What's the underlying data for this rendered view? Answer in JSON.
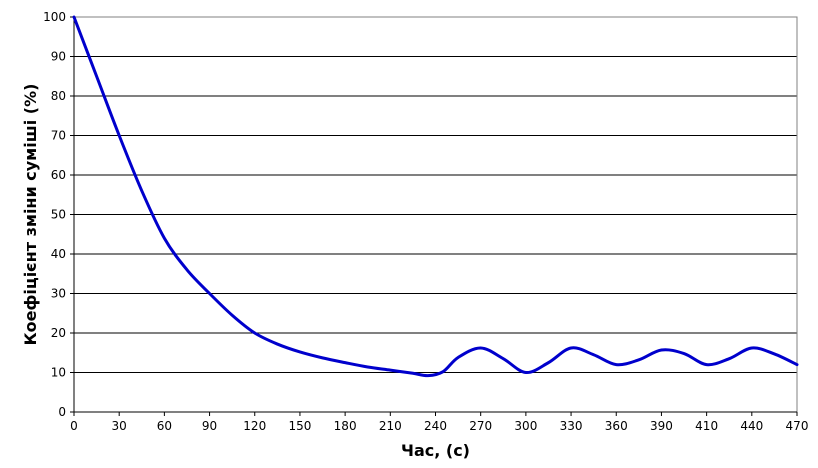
{
  "chart_data": {
    "type": "line",
    "title": "",
    "xlabel": "Час, (с)",
    "ylabel": "Коефіцієнт зміни суміші (%)",
    "ylim": [
      0,
      100
    ],
    "x_ticks": [
      "0",
      "30",
      "60",
      "90",
      "120",
      "150",
      "180",
      "210",
      "240",
      "270",
      "300",
      "330",
      "360",
      "390",
      "410",
      "440",
      "470"
    ],
    "y_ticks": [
      "0",
      "10",
      "20",
      "30",
      "40",
      "50",
      "60",
      "70",
      "80",
      "90",
      "100"
    ],
    "grid": true,
    "legend": "none",
    "series": [
      {
        "color": "#0000cc",
        "points": [
          [
            0,
            100
          ],
          [
            15,
            85
          ],
          [
            30,
            70
          ],
          [
            45,
            56
          ],
          [
            60,
            44
          ],
          [
            75,
            36
          ],
          [
            90,
            30
          ],
          [
            105,
            24.5
          ],
          [
            120,
            20
          ],
          [
            135,
            17.2
          ],
          [
            150,
            15.2
          ],
          [
            165,
            13.7
          ],
          [
            180,
            12.5
          ],
          [
            195,
            11.4
          ],
          [
            210,
            10.6
          ],
          [
            225,
            9.8
          ],
          [
            235,
            9.2
          ],
          [
            245,
            10.2
          ],
          [
            255,
            13.8
          ],
          [
            270,
            16.2
          ],
          [
            285,
            13.5
          ],
          [
            300,
            10.0
          ],
          [
            315,
            12.5
          ],
          [
            330,
            16.2
          ],
          [
            345,
            14.5
          ],
          [
            360,
            12.0
          ],
          [
            375,
            13.2
          ],
          [
            390,
            15.7
          ],
          [
            400,
            14.8
          ],
          [
            410,
            12.0
          ],
          [
            425,
            13.5
          ],
          [
            440,
            16.2
          ],
          [
            455,
            14.7
          ],
          [
            470,
            12.0
          ]
        ]
      }
    ]
  }
}
